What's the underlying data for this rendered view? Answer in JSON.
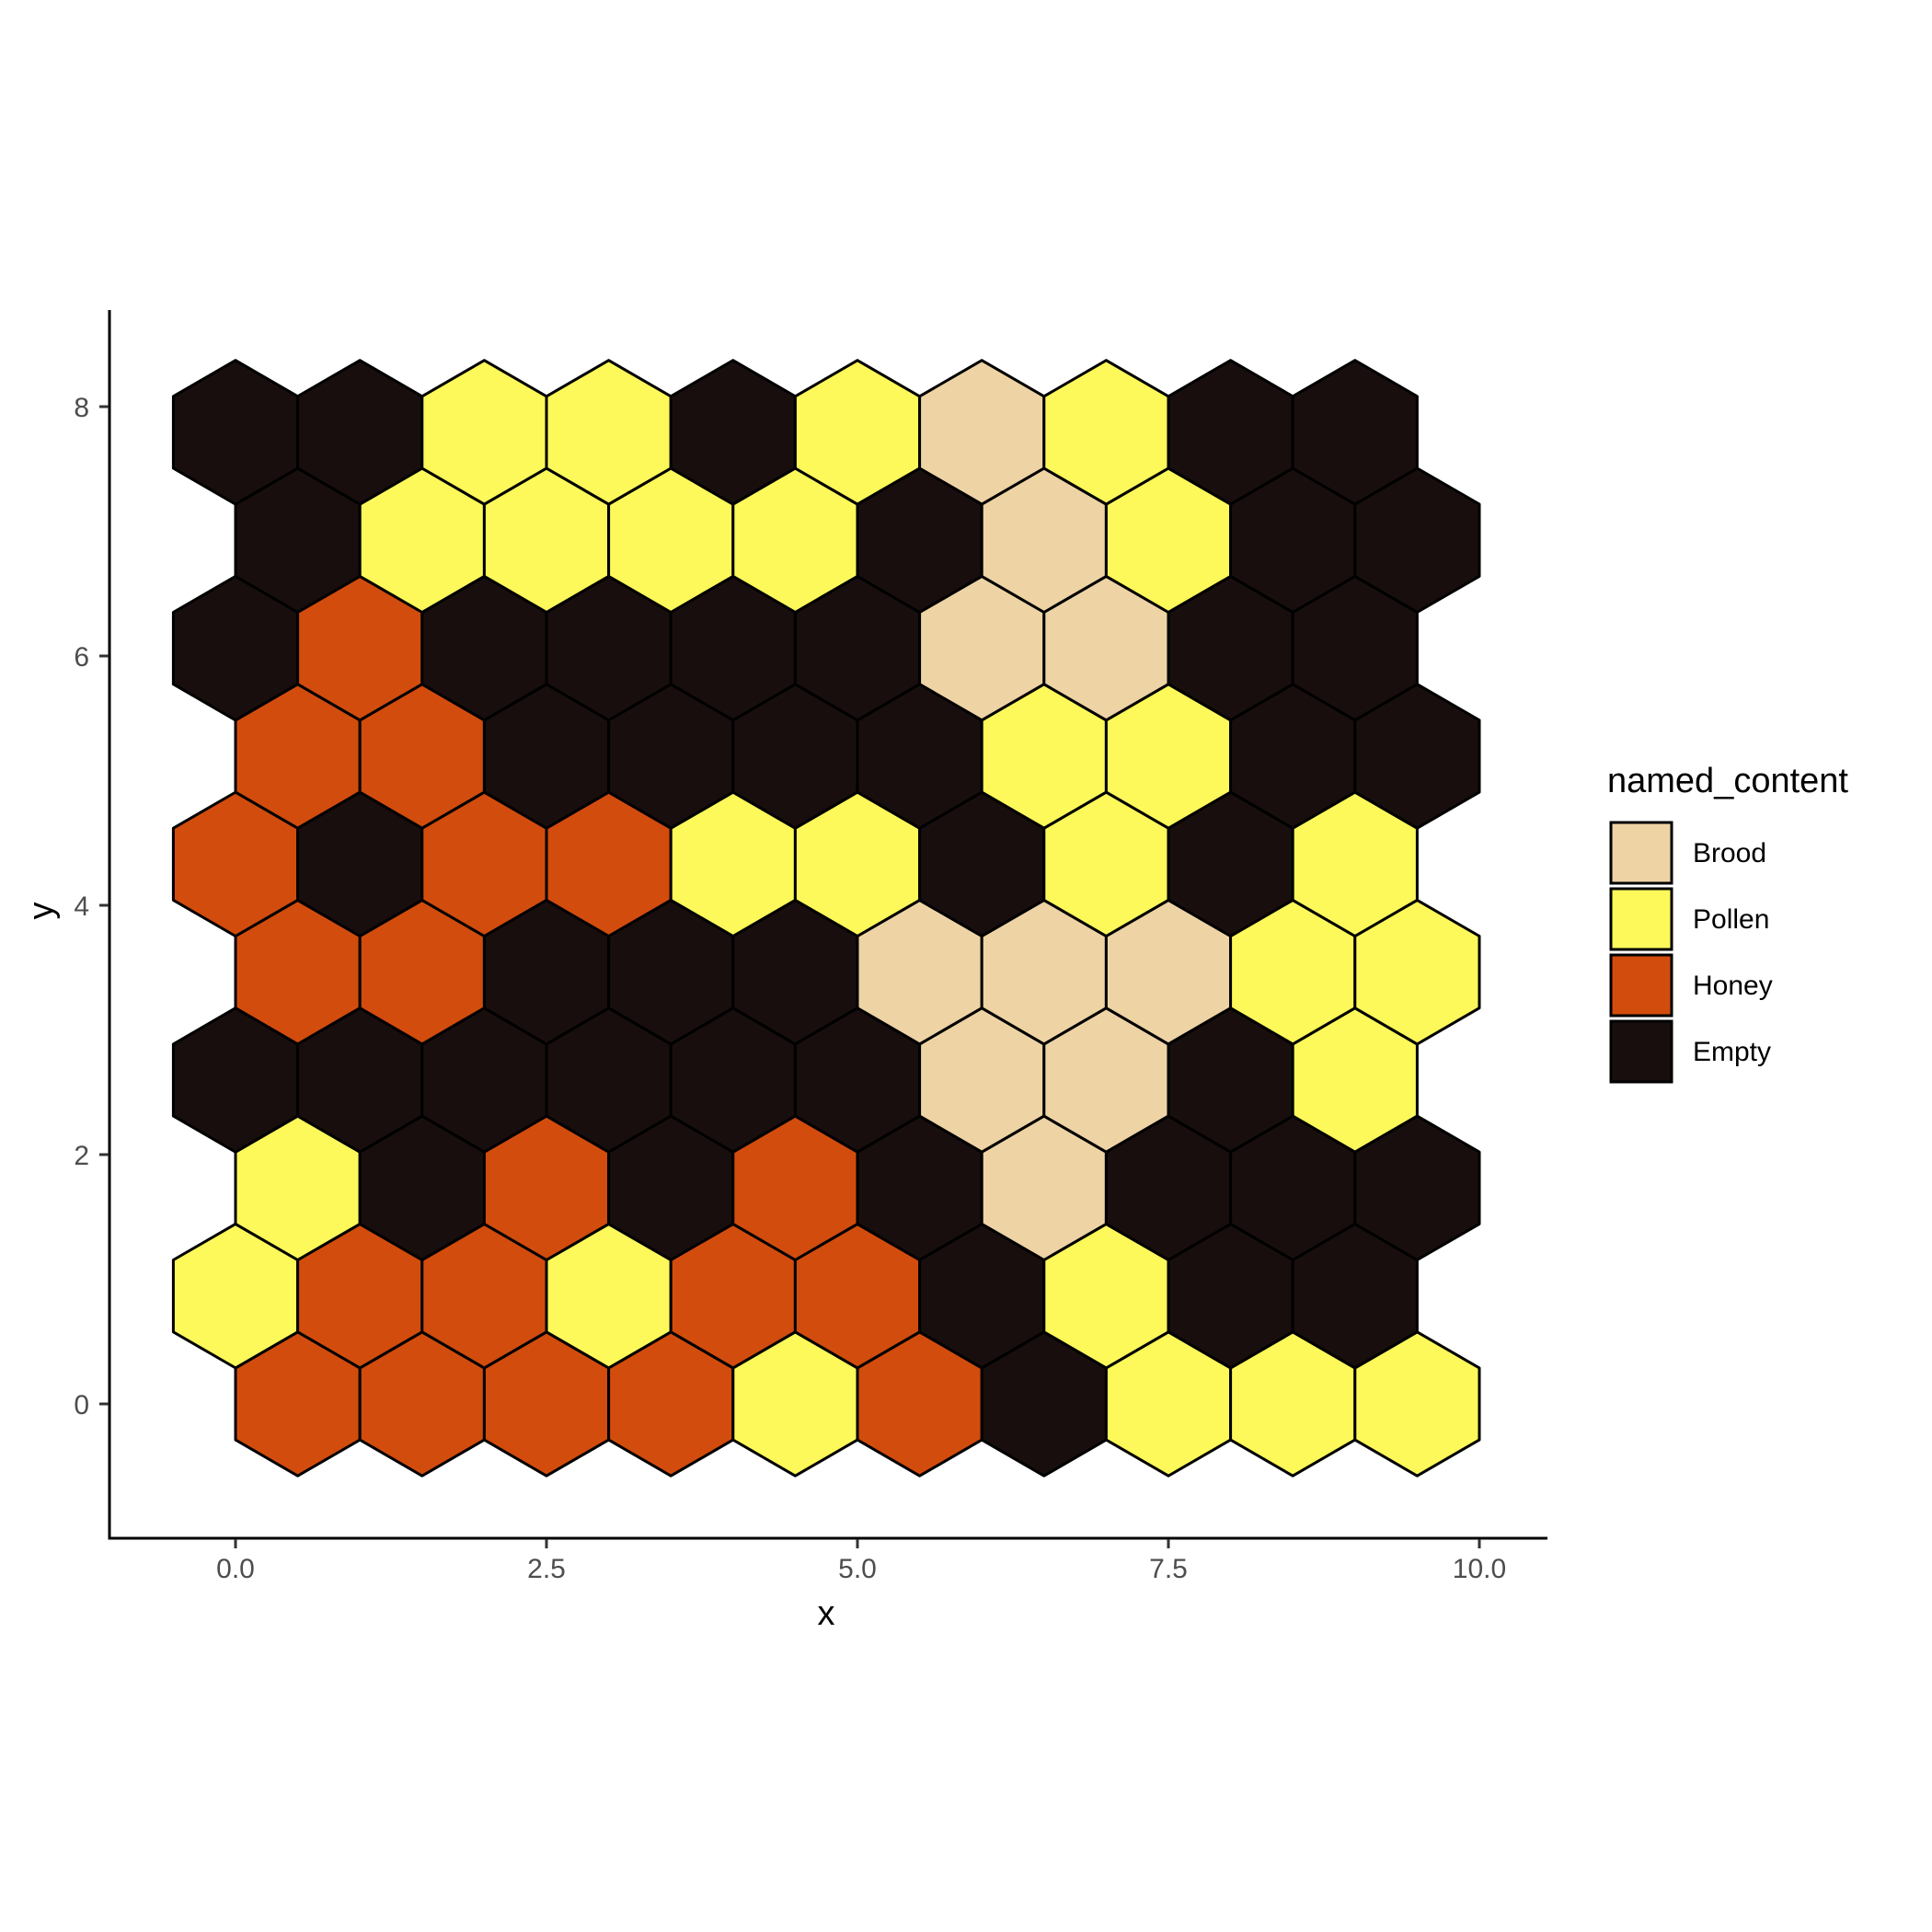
{
  "chart_data": {
    "type": "heatmap",
    "xlabel": "x",
    "ylabel": "y",
    "xlim": [
      -1,
      10.5
    ],
    "ylim": [
      -1,
      8.8
    ],
    "x_ticks": [
      0.0,
      2.5,
      5.0,
      7.5,
      10.0
    ],
    "x_tick_labels": [
      "0.0",
      "2.5",
      "5.0",
      "7.5",
      "10.0"
    ],
    "y_ticks": [
      0,
      2,
      4,
      6,
      8
    ],
    "y_tick_labels": [
      "0",
      "2",
      "4",
      "6",
      "8"
    ],
    "grid": false,
    "legend": {
      "title": "named_content",
      "position": "right",
      "entries": [
        "Brood",
        "Pollen",
        "Honey",
        "Empty"
      ]
    },
    "colors": {
      "Brood": "#eed3a5",
      "Pollen": "#fdf95a",
      "Honey": "#d24c0e",
      "Empty": "#190e0e"
    },
    "hex_rows": [
      {
        "y": 0.0,
        "x_start": 0.5,
        "cells": [
          "Honey",
          "Honey",
          "Honey",
          "Honey",
          "Pollen",
          "Honey",
          "Empty",
          "Pollen",
          "Pollen",
          "Pollen"
        ]
      },
      {
        "y": 0.866,
        "x_start": 0.0,
        "cells": [
          "Pollen",
          "Honey",
          "Honey",
          "Pollen",
          "Honey",
          "Honey",
          "Empty",
          "Pollen",
          "Empty",
          "Empty"
        ]
      },
      {
        "y": 1.732,
        "x_start": 0.5,
        "cells": [
          "Pollen",
          "Empty",
          "Honey",
          "Empty",
          "Honey",
          "Empty",
          "Brood",
          "Empty",
          "Empty",
          "Empty"
        ]
      },
      {
        "y": 2.598,
        "x_start": 0.0,
        "cells": [
          "Empty",
          "Empty",
          "Empty",
          "Empty",
          "Empty",
          "Empty",
          "Brood",
          "Brood",
          "Empty",
          "Pollen"
        ]
      },
      {
        "y": 3.464,
        "x_start": 0.5,
        "cells": [
          "Honey",
          "Honey",
          "Empty",
          "Empty",
          "Empty",
          "Brood",
          "Brood",
          "Brood",
          "Pollen",
          "Pollen"
        ]
      },
      {
        "y": 4.33,
        "x_start": 0.0,
        "cells": [
          "Honey",
          "Empty",
          "Honey",
          "Honey",
          "Pollen",
          "Pollen",
          "Empty",
          "Pollen",
          "Empty",
          "Pollen"
        ]
      },
      {
        "y": 5.196,
        "x_start": 0.5,
        "cells": [
          "Honey",
          "Honey",
          "Empty",
          "Empty",
          "Empty",
          "Empty",
          "Pollen",
          "Pollen",
          "Empty",
          "Empty"
        ]
      },
      {
        "y": 6.062,
        "x_start": 0.0,
        "cells": [
          "Empty",
          "Honey",
          "Empty",
          "Empty",
          "Empty",
          "Empty",
          "Brood",
          "Brood",
          "Empty",
          "Empty"
        ]
      },
      {
        "y": 6.928,
        "x_start": 0.5,
        "cells": [
          "Empty",
          "Pollen",
          "Pollen",
          "Pollen",
          "Pollen",
          "Empty",
          "Brood",
          "Pollen",
          "Empty",
          "Empty"
        ]
      },
      {
        "y": 7.794,
        "x_start": 0.0,
        "cells": [
          "Empty",
          "Empty",
          "Pollen",
          "Pollen",
          "Empty",
          "Pollen",
          "Brood",
          "Pollen",
          "Empty",
          "Empty"
        ]
      }
    ]
  }
}
